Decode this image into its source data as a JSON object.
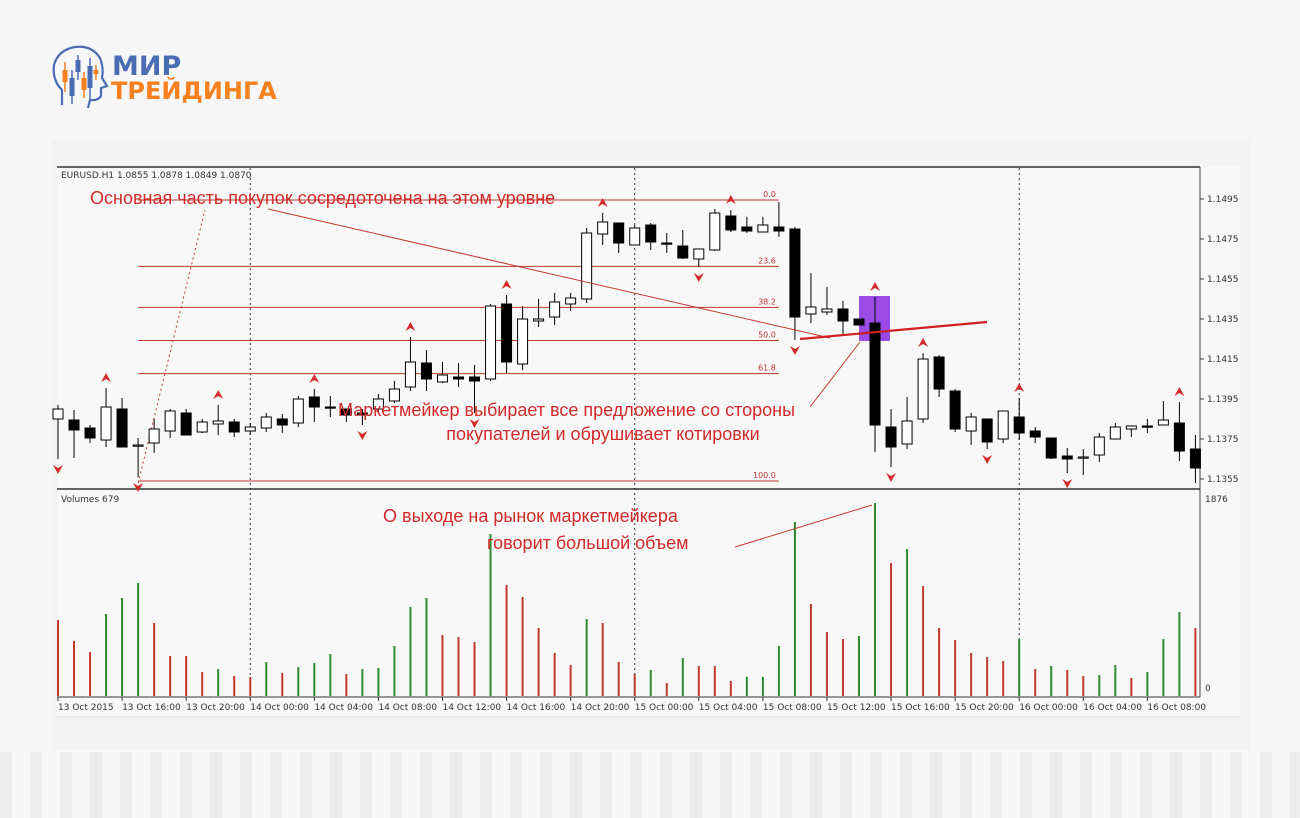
{
  "logo": {
    "line1": "МИР",
    "line2": "ТРЕЙДИНГА",
    "colors": {
      "blue": "#4a6cb3",
      "orange": "#f7811f"
    }
  },
  "chart_header": "EURUSD.H1  1.0855 1.0878 1.0849 1.0870",
  "volume_header": "Volumes 679",
  "annotations": {
    "buy_level": "Основная часть покупок сосредоточена на этом уровне",
    "mm_line1": "Маркетмейкер выбирает все предложение со стороны",
    "mm_line2": "покупателей и обрушивает котировки",
    "vol_line1": "О выходе на рынок маркетмейкера",
    "vol_line2": "говорит большой объем"
  },
  "chart_data": [
    {
      "type": "candlestick",
      "symbol": "EURUSD",
      "timeframe": "H1",
      "ylim": [
        1.135,
        1.1505
      ],
      "y_ticks": [
        "1.1495",
        "1.1475",
        "1.1455",
        "1.1435",
        "1.1415",
        "1.1395",
        "1.1375",
        "1.1355"
      ],
      "x_tick_labels": [
        "13 Oct 2015",
        "13 Oct 16:00",
        "13 Oct 20:00",
        "14 Oct 00:00",
        "14 Oct 04:00",
        "14 Oct 08:00",
        "14 Oct 12:00",
        "14 Oct 16:00",
        "14 Oct 20:00",
        "15 Oct 00:00",
        "15 Oct 04:00",
        "15 Oct 08:00",
        "15 Oct 12:00",
        "15 Oct 16:00",
        "15 Oct 20:00",
        "16 Oct 00:00",
        "16 Oct 04:00",
        "16 Oct 08:00"
      ],
      "x_tick_every_bars": 4,
      "day_separators": [
        "14 Oct 00:00",
        "15 Oct 00:00",
        "16 Oct 00:00"
      ],
      "ohlc": [
        [
          1.1385,
          1.1392,
          1.1365,
          1.139
        ],
        [
          1.13845,
          1.13895,
          1.13655,
          1.13795
        ],
        [
          1.13805,
          1.1382,
          1.1373,
          1.13755
        ],
        [
          1.13745,
          1.14005,
          1.1371,
          1.1391
        ],
        [
          1.139,
          1.13955,
          1.1371,
          1.1371
        ],
        [
          1.1372,
          1.13755,
          1.1356,
          1.1372
        ],
        [
          1.1373,
          1.1385,
          1.1368,
          1.138
        ],
        [
          1.1379,
          1.139,
          1.13755,
          1.1389
        ],
        [
          1.1388,
          1.139,
          1.1377,
          1.1377
        ],
        [
          1.13785,
          1.1385,
          1.1378,
          1.13835
        ],
        [
          1.13825,
          1.1392,
          1.1377,
          1.1384
        ],
        [
          1.13835,
          1.1385,
          1.1376,
          1.13785
        ],
        [
          1.1379,
          1.1383,
          1.1377,
          1.1381
        ],
        [
          1.13805,
          1.1388,
          1.13785,
          1.1386
        ],
        [
          1.1385,
          1.13875,
          1.1378,
          1.1382
        ],
        [
          1.1383,
          1.13965,
          1.1381,
          1.1395
        ],
        [
          1.1396,
          1.14,
          1.13835,
          1.1391
        ],
        [
          1.1391,
          1.13965,
          1.1386,
          1.13905
        ],
        [
          1.139,
          1.139,
          1.13835,
          1.1387
        ],
        [
          1.1388,
          1.139,
          1.1382,
          1.1387
        ],
        [
          1.139,
          1.13975,
          1.13875,
          1.1395
        ],
        [
          1.1394,
          1.1404,
          1.1393,
          1.14
        ],
        [
          1.1401,
          1.1426,
          1.1399,
          1.14135
        ],
        [
          1.1413,
          1.14195,
          1.1399,
          1.1405
        ],
        [
          1.14035,
          1.14135,
          1.1403,
          1.1407
        ],
        [
          1.1406,
          1.1413,
          1.1401,
          1.1405
        ],
        [
          1.1406,
          1.1412,
          1.1388,
          1.1404
        ],
        [
          1.1405,
          1.14425,
          1.1404,
          1.14415
        ],
        [
          1.14425,
          1.1447,
          1.1408,
          1.14135
        ],
        [
          1.14125,
          1.14415,
          1.14095,
          1.1435
        ],
        [
          1.1434,
          1.1445,
          1.1431,
          1.1435
        ],
        [
          1.1436,
          1.1448,
          1.1432,
          1.14435
        ],
        [
          1.14425,
          1.1448,
          1.1439,
          1.14455
        ],
        [
          1.1445,
          1.14805,
          1.1443,
          1.1478
        ],
        [
          1.14775,
          1.1488,
          1.1472,
          1.14835
        ],
        [
          1.1483,
          1.1483,
          1.1468,
          1.1473
        ],
        [
          1.1472,
          1.1482,
          1.1472,
          1.14805
        ],
        [
          1.1482,
          1.1483,
          1.14695,
          1.14735
        ],
        [
          1.1473,
          1.1478,
          1.1468,
          1.14725
        ],
        [
          1.14715,
          1.14795,
          1.1465,
          1.14655
        ],
        [
          1.1465,
          1.147,
          1.1461,
          1.147
        ],
        [
          1.14695,
          1.149,
          1.1469,
          1.1488
        ],
        [
          1.14865,
          1.14895,
          1.14785,
          1.14795
        ],
        [
          1.1481,
          1.1486,
          1.1478,
          1.1479
        ],
        [
          1.14785,
          1.1486,
          1.14785,
          1.1482
        ],
        [
          1.1481,
          1.14935,
          1.1476,
          1.1479
        ],
        [
          1.148,
          1.1481,
          1.14245,
          1.1436
        ],
        [
          1.14375,
          1.1458,
          1.1433,
          1.1441
        ],
        [
          1.14385,
          1.1451,
          1.1437,
          1.144
        ],
        [
          1.144,
          1.1444,
          1.14275,
          1.1434
        ],
        [
          1.1435,
          1.1435,
          1.1432,
          1.1432
        ],
        [
          1.1433,
          1.1446,
          1.13685,
          1.1382
        ],
        [
          1.1381,
          1.139,
          1.1361,
          1.1371
        ],
        [
          1.13725,
          1.1396,
          1.137,
          1.1384
        ],
        [
          1.1385,
          1.1418,
          1.1383,
          1.1415
        ],
        [
          1.1416,
          1.1417,
          1.1396,
          1.14
        ],
        [
          1.1399,
          1.14,
          1.13785,
          1.138
        ],
        [
          1.1379,
          1.1388,
          1.1372,
          1.1386
        ],
        [
          1.1385,
          1.1385,
          1.137,
          1.13735
        ],
        [
          1.1375,
          1.1389,
          1.1373,
          1.1389
        ],
        [
          1.1386,
          1.13955,
          1.13745,
          1.1378
        ],
        [
          1.1379,
          1.1381,
          1.1373,
          1.1376
        ],
        [
          1.13755,
          1.13755,
          1.1365,
          1.13655
        ],
        [
          1.13665,
          1.13705,
          1.1358,
          1.1365
        ],
        [
          1.13655,
          1.137,
          1.1357,
          1.1366
        ],
        [
          1.1367,
          1.1378,
          1.13635,
          1.1376
        ],
        [
          1.1375,
          1.1383,
          1.1375,
          1.1381
        ],
        [
          1.138,
          1.13815,
          1.1376,
          1.13815
        ],
        [
          1.13815,
          1.1385,
          1.1378,
          1.1381
        ],
        [
          1.1382,
          1.1394,
          1.1382,
          1.13845
        ],
        [
          1.1383,
          1.13935,
          1.1364,
          1.1369
        ],
        [
          1.137,
          1.1377,
          1.1353,
          1.13605
        ]
      ],
      "fractals_up_bars": [
        3,
        10,
        16,
        22,
        28,
        34,
        42,
        51,
        54,
        60,
        70
      ],
      "fractals_down_bars": [
        0,
        5,
        19,
        26,
        40,
        46,
        52,
        58,
        63
      ],
      "fibonacci": {
        "high": 1.14945,
        "low": 1.1354,
        "from_bar": 5,
        "to_bar": 45,
        "levels": [
          {
            "label": "0.0",
            "value": 0.0
          },
          {
            "label": "23.6",
            "value": 23.6
          },
          {
            "label": "38.2",
            "value": 38.2
          },
          {
            "label": "50.0",
            "value": 50.0
          },
          {
            "label": "61.8",
            "value": 61.8
          },
          {
            "label": "100.0",
            "value": 100.0
          }
        ]
      },
      "highlight_bar": 51,
      "colors": {
        "candle": "#000000",
        "fib": "#c0392b",
        "fractal": "#d32a2a",
        "highlight": "#8a2be2",
        "annotation": "#d32a2a"
      }
    },
    {
      "type": "bar",
      "title": "Volumes 679",
      "ylim": [
        0,
        1876
      ],
      "y_ticks": [
        "1876",
        "0"
      ],
      "values": [
        739,
        535,
        428,
        797,
        953,
        1098,
        710,
        389,
        389,
        233,
        262,
        194,
        185,
        330,
        224,
        282,
        321,
        408,
        214,
        262,
        272,
        486,
        865,
        953,
        593,
        573,
        525,
        1575,
        1079,
        962,
        661,
        418,
        301,
        748,
        710,
        330,
        214,
        253,
        126,
        369,
        292,
        292,
        146,
        185,
        185,
        486,
        1691,
        894,
        622,
        554,
        583,
        1876,
        1293,
        1429,
        1069,
        661,
        544,
        418,
        379,
        340,
        554,
        262,
        292,
        253,
        194,
        204,
        301,
        175,
        233,
        554,
        816,
        661
      ],
      "direction": "rrrgggrrrrgrrgrgggrgggggrrrgrrrrrgrrrgrgrrrggggrrrggrgrrrrrrgrgrrggrgggr",
      "colors": {
        "up": "#2e8b2e",
        "down": "#c0392b"
      }
    }
  ]
}
